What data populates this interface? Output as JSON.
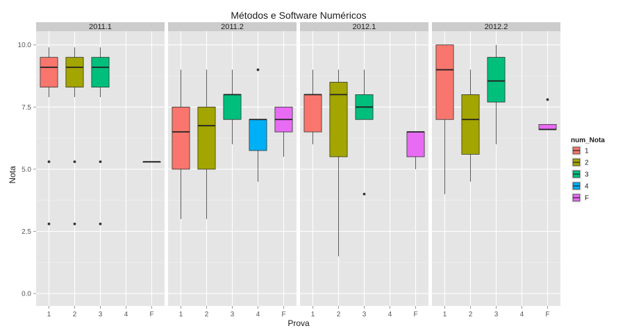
{
  "chart_data": {
    "type": "boxplot",
    "title": "Métodos e Software Numéricos",
    "xlabel": "Prova",
    "ylabel": "Nota",
    "ylim": [
      -0.5,
      10.55
    ],
    "y_ticks": [
      0.0,
      2.5,
      5.0,
      7.5,
      10.0
    ],
    "y_tick_labels": [
      "0.0",
      "2.5",
      "5.0",
      "7.5",
      "10.0"
    ],
    "categories": [
      "1",
      "2",
      "3",
      "4",
      "F"
    ],
    "legend": {
      "title": "num_Nota",
      "position": "right",
      "entries": [
        {
          "label": "1",
          "color": "#F8766D"
        },
        {
          "label": "2",
          "color": "#A3A500"
        },
        {
          "label": "3",
          "color": "#00BF7D"
        },
        {
          "label": "4",
          "color": "#00B0F6"
        },
        {
          "label": "F",
          "color": "#E76BF3"
        }
      ]
    },
    "panels": [
      {
        "label": "2011.1",
        "boxes": [
          {
            "category": "1",
            "min": 7.9,
            "q1": 8.3,
            "median": 9.1,
            "q3": 9.5,
            "max": 9.9,
            "outliers": [
              5.3,
              2.8
            ]
          },
          {
            "category": "2",
            "min": 7.9,
            "q1": 8.3,
            "median": 9.1,
            "q3": 9.5,
            "max": 9.9,
            "outliers": [
              5.3,
              2.8
            ]
          },
          {
            "category": "3",
            "min": 7.9,
            "q1": 8.3,
            "median": 9.1,
            "q3": 9.5,
            "max": 9.9,
            "outliers": [
              5.3,
              2.8
            ]
          },
          {
            "category": "F",
            "min": 5.3,
            "q1": 5.3,
            "median": 5.3,
            "q3": 5.3,
            "max": 5.3,
            "outliers": []
          }
        ]
      },
      {
        "label": "2011.2",
        "boxes": [
          {
            "category": "1",
            "min": 3.0,
            "q1": 5.0,
            "median": 6.5,
            "q3": 7.5,
            "max": 9.0,
            "outliers": []
          },
          {
            "category": "2",
            "min": 3.0,
            "q1": 5.0,
            "median": 6.75,
            "q3": 7.5,
            "max": 9.0,
            "outliers": []
          },
          {
            "category": "3",
            "min": 6.0,
            "q1": 7.0,
            "median": 8.0,
            "q3": 8.0,
            "max": 9.0,
            "outliers": []
          },
          {
            "category": "4",
            "min": 4.5,
            "q1": 5.75,
            "median": 7.0,
            "q3": 7.0,
            "max": 7.0,
            "outliers": [
              9.0
            ]
          },
          {
            "category": "F",
            "min": 5.5,
            "q1": 6.5,
            "median": 7.0,
            "q3": 7.5,
            "max": 7.5,
            "outliers": []
          }
        ]
      },
      {
        "label": "2012.1",
        "boxes": [
          {
            "category": "1",
            "min": 6.0,
            "q1": 6.5,
            "median": 8.0,
            "q3": 8.0,
            "max": 9.0,
            "outliers": []
          },
          {
            "category": "2",
            "min": 1.5,
            "q1": 5.5,
            "median": 8.0,
            "q3": 8.5,
            "max": 9.0,
            "outliers": []
          },
          {
            "category": "3",
            "min": 7.0,
            "q1": 7.0,
            "median": 7.5,
            "q3": 8.0,
            "max": 9.0,
            "outliers": [
              4.0
            ]
          },
          {
            "category": "F",
            "min": 5.0,
            "q1": 5.5,
            "median": 6.5,
            "q3": 6.5,
            "max": 6.5,
            "outliers": []
          }
        ]
      },
      {
        "label": "2012.2",
        "boxes": [
          {
            "category": "1",
            "min": 4.0,
            "q1": 7.0,
            "median": 9.0,
            "q3": 10.0,
            "max": 10.0,
            "outliers": []
          },
          {
            "category": "2",
            "min": 4.5,
            "q1": 5.6,
            "median": 7.0,
            "q3": 8.0,
            "max": 9.0,
            "outliers": []
          },
          {
            "category": "3",
            "min": 6.0,
            "q1": 7.7,
            "median": 8.55,
            "q3": 9.5,
            "max": 10.0,
            "outliers": []
          },
          {
            "category": "F",
            "min": 6.6,
            "q1": 6.6,
            "median": 6.6,
            "q3": 6.8,
            "max": 6.8,
            "outliers": [
              7.8
            ]
          }
        ]
      }
    ],
    "grid": true
  }
}
